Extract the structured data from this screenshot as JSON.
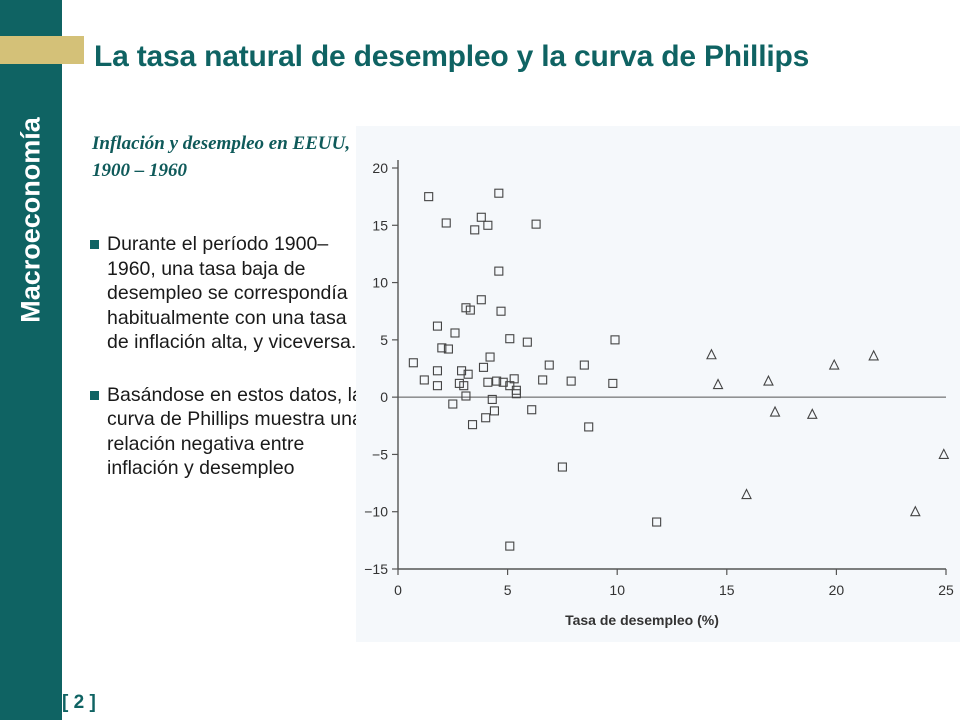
{
  "sidebar": {
    "vertical_title": "Macroeconomía",
    "page_number": "[ 2 ]"
  },
  "title": "La tasa natural de desempleo y la curva de Phillips",
  "subtitle": "Inflación y desempleo en EEUU, 1900 – 1960",
  "bullets": [
    "Durante el período 1900–1960, una tasa baja de desempleo se correspondía habitualmente con una tasa de inflación alta, y viceversa.",
    "Basándose en estos datos, la curva de Phillips muestra una relación negativa entre inflación y desempleo"
  ],
  "colors": {
    "sidebar": "#0f6363",
    "accent": "#d4c178",
    "title": "#0f6363"
  },
  "chart_data": {
    "type": "scatter",
    "title": "",
    "xlabel": "Tasa de desempleo (%)",
    "ylabel": "",
    "xlim": [
      0,
      25
    ],
    "ylim": [
      -15,
      20
    ],
    "xticks": [
      "0",
      "5",
      "10",
      "15",
      "20",
      "25"
    ],
    "yticks": [
      "20",
      "15",
      "10",
      "5",
      "0",
      "−5",
      "−10",
      "−15"
    ],
    "zero_line": true,
    "grid": false,
    "legend": "none",
    "series": [
      {
        "marker": "square",
        "points": [
          [
            0.7,
            3.0
          ],
          [
            1.2,
            1.5
          ],
          [
            1.4,
            17.5
          ],
          [
            1.8,
            6.2
          ],
          [
            1.8,
            2.3
          ],
          [
            1.8,
            1.0
          ],
          [
            2.0,
            4.3
          ],
          [
            2.2,
            15.2
          ],
          [
            2.3,
            4.2
          ],
          [
            2.5,
            -0.6
          ],
          [
            2.6,
            5.6
          ],
          [
            2.8,
            1.2
          ],
          [
            2.9,
            2.3
          ],
          [
            3.0,
            1.0
          ],
          [
            3.1,
            7.8
          ],
          [
            3.2,
            2.0
          ],
          [
            3.1,
            0.1
          ],
          [
            3.3,
            7.6
          ],
          [
            3.4,
            -2.4
          ],
          [
            3.5,
            14.6
          ],
          [
            3.8,
            8.5
          ],
          [
            3.8,
            15.7
          ],
          [
            3.9,
            2.6
          ],
          [
            4.0,
            -1.8
          ],
          [
            4.1,
            15.0
          ],
          [
            4.1,
            1.3
          ],
          [
            4.2,
            3.5
          ],
          [
            4.3,
            -0.2
          ],
          [
            4.4,
            -1.2
          ],
          [
            4.5,
            1.4
          ],
          [
            4.6,
            11.0
          ],
          [
            4.6,
            17.8
          ],
          [
            4.7,
            7.5
          ],
          [
            4.8,
            1.3
          ],
          [
            5.1,
            5.1
          ],
          [
            5.1,
            1.0
          ],
          [
            5.1,
            -13.0
          ],
          [
            5.3,
            1.6
          ],
          [
            5.4,
            0.6
          ],
          [
            5.4,
            0.3
          ],
          [
            5.9,
            4.8
          ],
          [
            6.1,
            -1.1
          ],
          [
            6.3,
            15.1
          ],
          [
            6.6,
            1.5
          ],
          [
            6.9,
            2.8
          ],
          [
            7.5,
            -6.1
          ],
          [
            7.9,
            1.4
          ],
          [
            8.5,
            2.8
          ],
          [
            8.7,
            -2.6
          ],
          [
            9.8,
            1.2
          ],
          [
            9.9,
            5.0
          ],
          [
            11.8,
            -10.9
          ]
        ]
      },
      {
        "marker": "triangle",
        "points": [
          [
            14.3,
            3.7
          ],
          [
            14.6,
            1.1
          ],
          [
            15.9,
            -8.5
          ],
          [
            16.9,
            1.4
          ],
          [
            17.2,
            -1.3
          ],
          [
            18.9,
            -1.5
          ],
          [
            19.9,
            2.8
          ],
          [
            21.7,
            3.6
          ],
          [
            23.6,
            -10.0
          ],
          [
            24.9,
            -5.0
          ]
        ]
      }
    ]
  }
}
